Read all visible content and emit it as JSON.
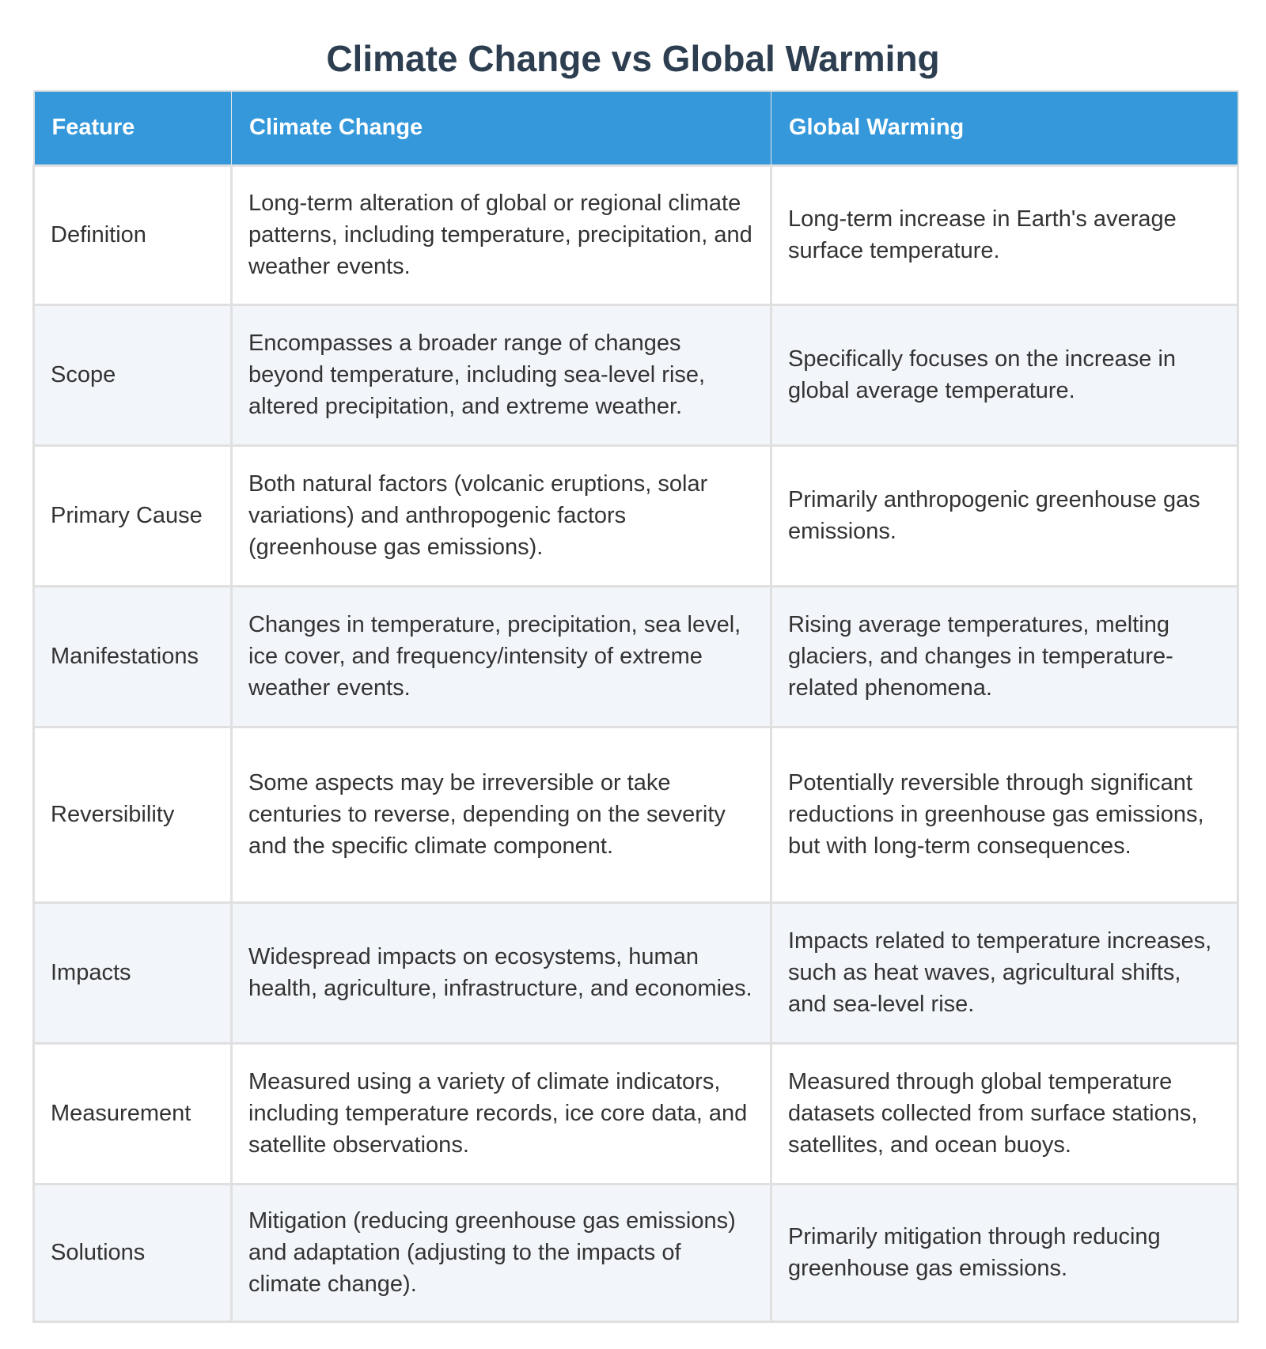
{
  "title": "Climate Change vs Global Warming",
  "headers": {
    "feature": "Feature",
    "climate_change": "Climate Change",
    "global_warming": "Global Warming"
  },
  "rows": [
    {
      "feature": "Definition",
      "climate_change": "Long-term alteration of global or regional climate patterns, including temperature, precipitation, and weather events.",
      "global_warming": "Long-term increase in Earth's average surface temperature."
    },
    {
      "feature": "Scope",
      "climate_change": "Encompasses a broader range of changes beyond temperature, including sea-level rise, altered precipitation, and extreme weather.",
      "global_warming": "Specifically focuses on the increase in global average temperature."
    },
    {
      "feature": "Primary Cause",
      "climate_change": "Both natural factors (volcanic eruptions, solar variations) and anthropogenic factors (greenhouse gas emissions).",
      "global_warming": "Primarily anthropogenic greenhouse gas emissions."
    },
    {
      "feature": "Manifestations",
      "climate_change": "Changes in temperature, precipitation, sea level, ice cover, and frequency/intensity of extreme weather events.",
      "global_warming": "Rising average temperatures, melting glaciers, and changes in temperature-related phenomena."
    },
    {
      "feature": "Reversibility",
      "climate_change": "Some aspects may be irreversible or take centuries to reverse, depending on the severity and the specific climate component.",
      "global_warming": "Potentially reversible through significant reductions in greenhouse gas emissions, but with long-term consequences."
    },
    {
      "feature": "Impacts",
      "climate_change": "Widespread impacts on ecosystems, human health, agriculture, infrastructure, and economies.",
      "global_warming": "Impacts related to temperature increases, such as heat waves, agricultural shifts, and sea-level rise."
    },
    {
      "feature": "Measurement",
      "climate_change": "Measured using a variety of climate indicators, including temperature records, ice core data, and satellite observations.",
      "global_warming": "Measured through global temperature datasets collected from surface stations, satellites, and ocean buoys."
    },
    {
      "feature": "Solutions",
      "climate_change": "Mitigation (reducing greenhouse gas emissions) and adaptation (adjusting to the impacts of climate change).",
      "global_warming": "Primarily mitigation through reducing greenhouse gas emissions."
    }
  ]
}
